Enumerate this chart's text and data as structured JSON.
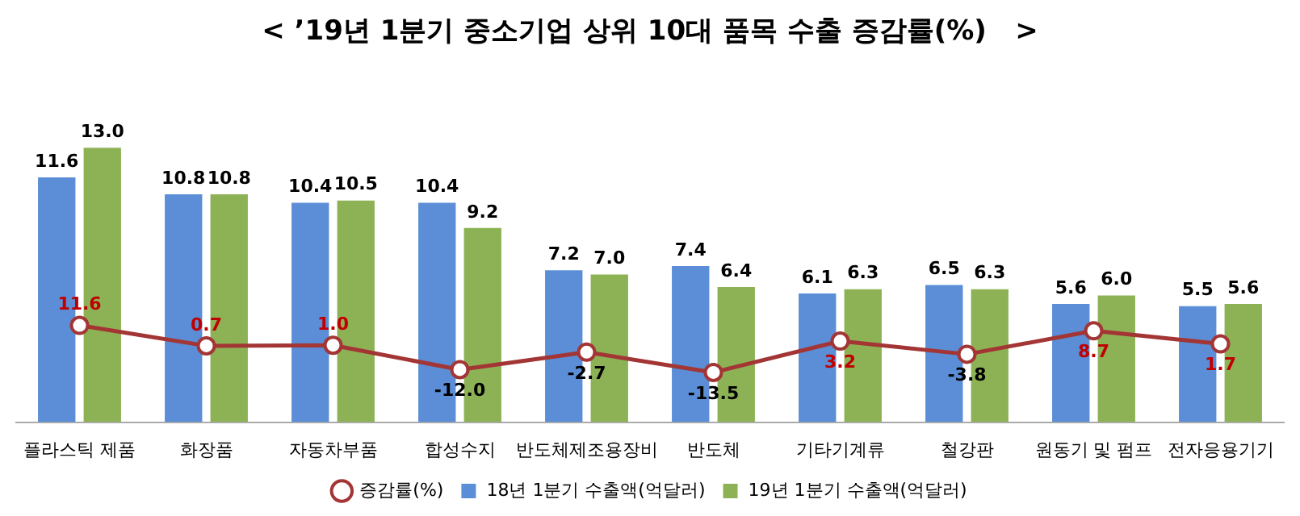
{
  "chart_data": {
    "type": "bar",
    "title": "< ’19년 1분기 중소기업 상위 10대 품목 수출 증감률(%)   >",
    "categories": [
      "플라스틱 제품",
      "화장품",
      "자동차부품",
      "합성수지",
      "반도체제조용장비",
      "반도체",
      "기타기계류",
      "철강판",
      "원동기 및 펌프",
      "전자응용기기"
    ],
    "series": [
      {
        "name": "18년 1분기 수출액(억달러)",
        "color": "#5b8ed6",
        "values": [
          11.6,
          10.8,
          10.4,
          10.4,
          7.2,
          7.4,
          6.1,
          6.5,
          5.6,
          5.5
        ],
        "value_labels": [
          "11.6",
          "10.8",
          "10.4",
          "10.4",
          "7.2",
          "7.4",
          "6.1",
          "6.5",
          "5.6",
          "5.5"
        ]
      },
      {
        "name": "19년 1분기 수출액(억달러)",
        "color": "#8db255",
        "values": [
          13.0,
          10.8,
          10.5,
          9.2,
          7.0,
          6.4,
          6.3,
          6.3,
          6.0,
          5.6
        ],
        "value_labels": [
          "13.0",
          "10.8",
          "10.5",
          "9.2",
          "7.0",
          "6.4",
          "6.3",
          "6.3",
          "6.0",
          "5.6"
        ]
      },
      {
        "name": "증감률(%)",
        "type": "line",
        "axis": "y2",
        "color": "#a33535",
        "marker": "circle",
        "values": [
          11.6,
          0.7,
          1.0,
          -12.0,
          -2.7,
          -13.5,
          3.2,
          -3.8,
          8.7,
          1.7
        ],
        "value_labels": [
          "11.6",
          "0.7",
          "1.0",
          "-12.0",
          "-2.7",
          "-13.5",
          "3.2",
          "-3.8",
          "8.7",
          "1.7"
        ]
      }
    ],
    "tick_labels": "x",
    "legend": "bottom",
    "grid": false
  }
}
